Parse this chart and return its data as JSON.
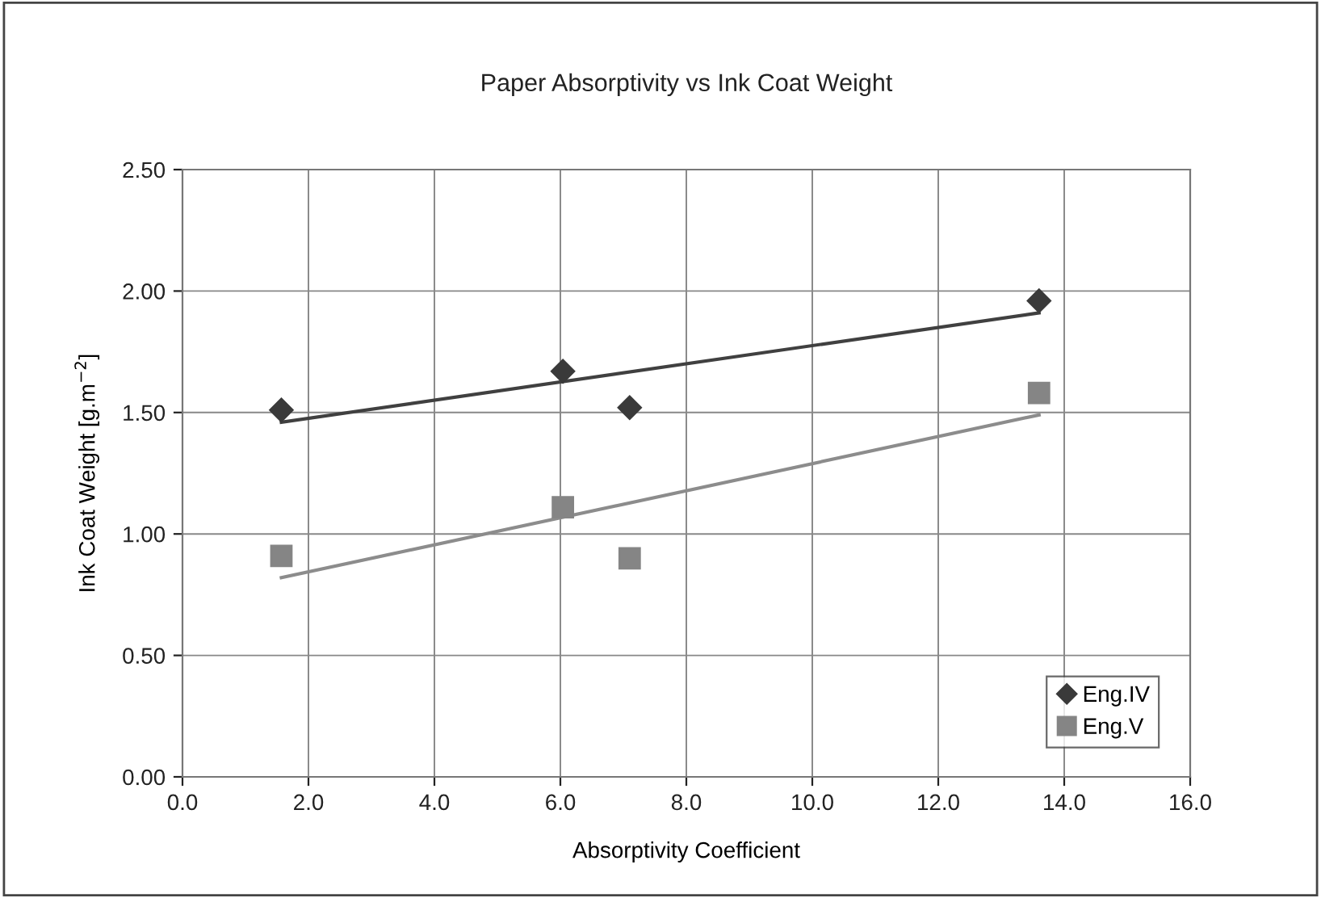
{
  "chart_data": {
    "type": "scatter",
    "title": "Paper Absorptivity vs Ink Coat Weight",
    "xlabel": "Absorptivity Coefficient",
    "ylabel": "Ink Coat Weight [g.m$^{−2}$]",
    "series": [
      {
        "name": "Eng.IV",
        "color": "#3a3a3a",
        "marker": "diamond",
        "x": [
          1.57,
          6.04,
          7.1,
          13.6
        ],
        "values": [
          1.51,
          1.67,
          1.52,
          1.96
        ]
      },
      {
        "name": "Eng.V",
        "color": "#858585",
        "marker": "square",
        "x": [
          1.57,
          6.04,
          7.1,
          13.6
        ],
        "values": [
          0.91,
          1.11,
          0.9,
          1.58
        ]
      },
      {
        "type": "line",
        "color": "#404040",
        "x": [
          1.57,
          13.6
        ],
        "values": [
          1.46,
          1.91
        ]
      },
      {
        "type": "line",
        "color": "#8c8c8c",
        "x": [
          1.57,
          13.6
        ],
        "values": [
          0.82,
          1.49
        ]
      }
    ],
    "xlim": [
      0,
      16
    ],
    "xticks": [
      {
        "value": 0,
        "label": "0.0"
      },
      {
        "value": 2,
        "label": "2.0"
      },
      {
        "value": 4,
        "label": "4.0"
      },
      {
        "value": 6,
        "label": "6.0"
      },
      {
        "value": 8,
        "label": "8.0"
      },
      {
        "value": 10,
        "label": "10.0"
      },
      {
        "value": 12,
        "label": "12.0"
      },
      {
        "value": 14,
        "label": "14.0"
      },
      {
        "value": 16,
        "label": "16.0"
      }
    ],
    "ylim": [
      0,
      2.5
    ],
    "yticks": [
      {
        "value": 0,
        "label": "0.00"
      },
      {
        "value": 0.5,
        "label": "0.50"
      },
      {
        "value": 1,
        "label": "1.00"
      },
      {
        "value": 1.5,
        "label": "1.50"
      },
      {
        "value": 2,
        "label": "2.00"
      },
      {
        "value": 2.5,
        "label": "2.50"
      }
    ],
    "grid": true,
    "legend": "bottom right"
  }
}
